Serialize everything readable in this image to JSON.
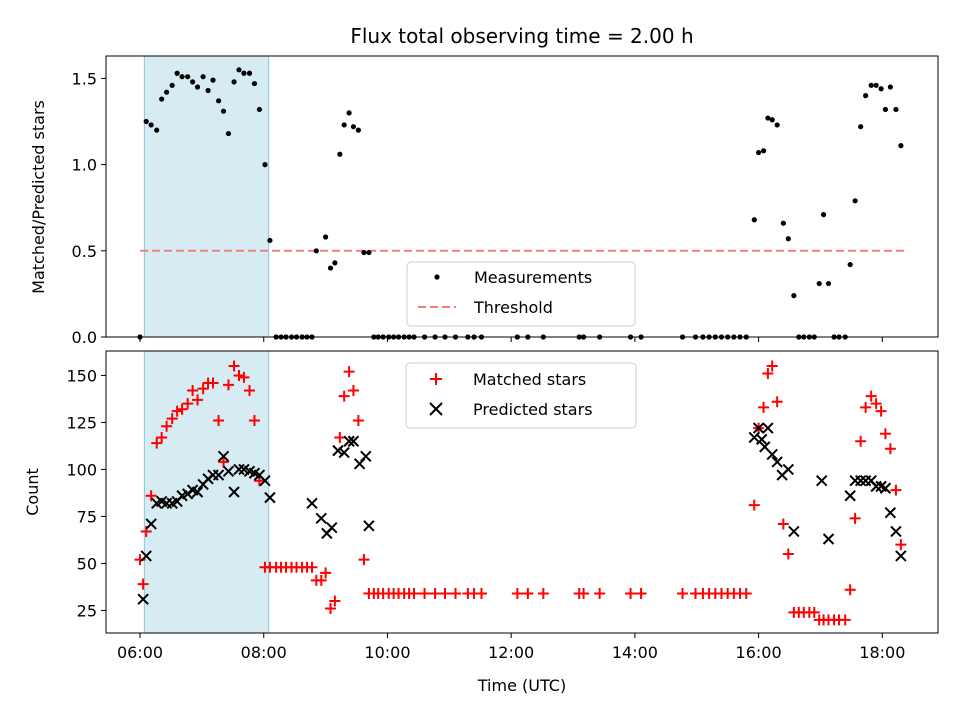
{
  "chart_data": [
    {
      "type": "scatter",
      "title": "Flux total observing time = 2.00 h",
      "ylabel": "Matched/Predicted stars",
      "xlabel": "",
      "xlim": [
        5.45,
        18.9
      ],
      "ylim": [
        0,
        1.63
      ],
      "yticks": [
        0,
        0.5,
        1.0,
        1.5
      ],
      "ytick_labels": [
        "0.0",
        "0.5",
        "1.0",
        "1.5"
      ],
      "shaded_region": [
        6.07,
        8.08
      ],
      "threshold": {
        "name": "Threshold",
        "y": 0.5,
        "x": [
          6.0,
          18.35
        ],
        "color": "#f08080"
      },
      "legend": {
        "position": "lower center",
        "entries": [
          "Measurements",
          "Threshold"
        ]
      },
      "series": [
        {
          "name": "Measurements",
          "color": "#000000",
          "x": [
            6.0,
            6.1,
            6.18,
            6.27,
            6.35,
            6.43,
            6.52,
            6.6,
            6.68,
            6.77,
            6.85,
            6.93,
            7.02,
            7.1,
            7.18,
            7.27,
            7.35,
            7.43,
            7.52,
            7.6,
            7.68,
            7.77,
            7.85,
            7.93,
            8.02,
            8.1,
            8.2,
            8.28,
            8.36,
            8.45,
            8.53,
            8.62,
            8.7,
            8.78,
            8.85,
            9.0,
            9.08,
            9.15,
            9.23,
            9.3,
            9.38,
            9.45,
            9.53,
            9.62,
            9.7,
            9.78,
            9.85,
            9.93,
            10.02,
            10.1,
            10.18,
            10.27,
            10.35,
            10.43,
            10.6,
            10.77,
            10.93,
            11.1,
            11.3,
            11.4,
            11.52,
            12.1,
            12.27,
            12.52,
            13.1,
            13.17,
            13.43,
            13.93,
            14.1,
            14.77,
            14.98,
            15.1,
            15.2,
            15.3,
            15.4,
            15.5,
            15.6,
            15.7,
            15.8,
            15.93,
            16.0,
            16.08,
            16.15,
            16.22,
            16.3,
            16.4,
            16.48,
            16.57,
            16.65,
            16.73,
            16.82,
            16.9,
            16.98,
            17.05,
            17.13,
            17.22,
            17.3,
            17.4,
            17.48,
            17.56,
            17.65,
            17.73,
            17.82,
            17.9,
            17.98,
            18.05,
            18.13,
            18.22,
            18.3
          ],
          "y": [
            0.0,
            1.25,
            1.23,
            1.2,
            1.38,
            1.42,
            1.46,
            1.53,
            1.51,
            1.51,
            1.48,
            1.45,
            1.51,
            1.43,
            1.49,
            1.37,
            1.31,
            1.18,
            1.48,
            1.55,
            1.53,
            1.53,
            1.47,
            1.32,
            1.0,
            0.56,
            0.0,
            0.0,
            0.0,
            0.0,
            0.0,
            0.0,
            0.0,
            0.0,
            0.5,
            0.58,
            0.4,
            0.43,
            1.06,
            1.23,
            1.3,
            1.22,
            1.2,
            0.49,
            0.49,
            0.0,
            0.0,
            0.0,
            0.0,
            0.0,
            0.0,
            0.0,
            0.0,
            0.0,
            0.0,
            0.0,
            0.0,
            0.0,
            0.0,
            0.0,
            0.0,
            0.0,
            0.0,
            0.0,
            0.0,
            0.0,
            0.0,
            0.0,
            0.0,
            0.0,
            0.0,
            0.0,
            0.0,
            0.0,
            0.0,
            0.0,
            0.0,
            0.0,
            0.0,
            0.68,
            1.07,
            1.08,
            1.27,
            1.26,
            1.23,
            0.66,
            0.57,
            0.24,
            0.0,
            0.0,
            0.0,
            0.0,
            0.31,
            0.71,
            0.31,
            0.0,
            0.0,
            0.0,
            0.42,
            0.79,
            1.22,
            1.4,
            1.46,
            1.46,
            1.44,
            1.32,
            1.45,
            1.32,
            1.11
          ]
        }
      ]
    },
    {
      "type": "scatter",
      "title": "",
      "xlabel": "Time (UTC)",
      "ylabel": "Count",
      "xlim": [
        5.45,
        18.9
      ],
      "ylim": [
        13,
        163
      ],
      "xticks": [
        6,
        8,
        10,
        12,
        14,
        16,
        18
      ],
      "xtick_labels": [
        "06:00",
        "08:00",
        "10:00",
        "12:00",
        "14:00",
        "16:00",
        "18:00"
      ],
      "yticks": [
        25,
        50,
        75,
        100,
        125,
        150
      ],
      "ytick_labels": [
        "25",
        "50",
        "75",
        "100",
        "125",
        "150"
      ],
      "shaded_region": [
        6.07,
        8.08
      ],
      "legend": {
        "position": "upper center",
        "entries": [
          "Matched stars",
          "Predicted stars"
        ]
      },
      "series": [
        {
          "name": "Matched stars",
          "color": "#ff0000",
          "marker": "+",
          "x": [
            6.0,
            6.05,
            6.1,
            6.18,
            6.27,
            6.35,
            6.43,
            6.52,
            6.6,
            6.68,
            6.77,
            6.85,
            6.93,
            7.02,
            7.1,
            7.18,
            7.27,
            7.35,
            7.43,
            7.52,
            7.6,
            7.68,
            7.77,
            7.85,
            7.93,
            8.02,
            8.1,
            8.2,
            8.28,
            8.36,
            8.45,
            8.53,
            8.62,
            8.7,
            8.78,
            8.85,
            8.93,
            9.0,
            9.08,
            9.15,
            9.23,
            9.3,
            9.38,
            9.45,
            9.53,
            9.62,
            9.7,
            9.78,
            9.85,
            9.93,
            10.02,
            10.1,
            10.18,
            10.27,
            10.35,
            10.43,
            10.6,
            10.77,
            10.93,
            11.1,
            11.3,
            11.4,
            11.52,
            12.1,
            12.27,
            12.52,
            13.1,
            13.17,
            13.43,
            13.93,
            14.1,
            14.77,
            14.98,
            15.1,
            15.2,
            15.3,
            15.4,
            15.5,
            15.6,
            15.7,
            15.8,
            15.93,
            16.0,
            16.08,
            16.15,
            16.22,
            16.3,
            16.4,
            16.48,
            16.57,
            16.65,
            16.73,
            16.82,
            16.9,
            16.98,
            17.05,
            17.13,
            17.22,
            17.3,
            17.4,
            17.48,
            17.56,
            17.65,
            17.73,
            17.82,
            17.9,
            17.98,
            18.05,
            18.13,
            18.22,
            18.3
          ],
          "y": [
            52,
            39,
            67,
            86,
            114,
            117,
            123,
            127,
            131,
            132,
            135,
            142,
            137,
            143,
            146,
            146,
            126,
            104,
            145,
            155,
            150,
            149,
            142,
            126,
            94,
            48,
            48,
            48,
            48,
            48,
            48,
            48,
            48,
            48,
            48,
            41,
            41,
            45,
            26,
            30,
            117,
            139,
            152,
            142,
            126,
            52,
            34,
            34,
            34,
            34,
            34,
            34,
            34,
            34,
            34,
            34,
            34,
            34,
            34,
            34,
            34,
            34,
            34,
            34,
            34,
            34,
            34,
            34,
            34,
            34,
            34,
            34,
            34,
            34,
            34,
            34,
            34,
            34,
            34,
            34,
            34,
            81,
            122,
            133,
            151,
            155,
            136,
            71,
            55,
            24,
            24,
            24,
            24,
            24,
            20,
            20,
            20,
            20,
            20,
            20,
            36,
            74,
            115,
            133,
            139,
            135,
            131,
            119,
            111,
            89,
            60
          ]
        },
        {
          "name": "Predicted stars",
          "color": "#000000",
          "marker": "x",
          "x": [
            6.05,
            6.1,
            6.18,
            6.27,
            6.35,
            6.43,
            6.52,
            6.6,
            6.68,
            6.77,
            6.85,
            6.93,
            7.02,
            7.1,
            7.18,
            7.27,
            7.35,
            7.43,
            7.52,
            7.6,
            7.68,
            7.77,
            7.85,
            7.93,
            8.02,
            8.1,
            8.78,
            8.93,
            9.02,
            9.1,
            9.2,
            9.3,
            9.38,
            9.45,
            9.55,
            9.65,
            9.7,
            15.93,
            16.0,
            16.05,
            16.1,
            16.15,
            16.22,
            16.3,
            16.38,
            16.48,
            16.57,
            17.02,
            17.13,
            17.48,
            17.56,
            17.65,
            17.73,
            17.82,
            17.9,
            17.98,
            18.05,
            18.13,
            18.22,
            18.3
          ],
          "y": [
            31,
            54,
            71,
            82,
            83,
            82,
            82,
            83,
            86,
            87,
            89,
            88,
            92,
            95,
            97,
            97,
            107,
            99,
            88,
            100,
            100,
            99,
            98,
            97,
            94,
            85,
            82,
            74,
            66,
            69,
            110,
            109,
            115,
            115,
            103,
            107,
            70,
            117,
            122,
            116,
            112,
            122,
            108,
            104,
            97,
            100,
            67,
            94,
            63,
            86,
            94,
            94,
            94,
            94,
            91,
            91,
            90,
            77,
            67,
            54
          ]
        }
      ]
    }
  ]
}
